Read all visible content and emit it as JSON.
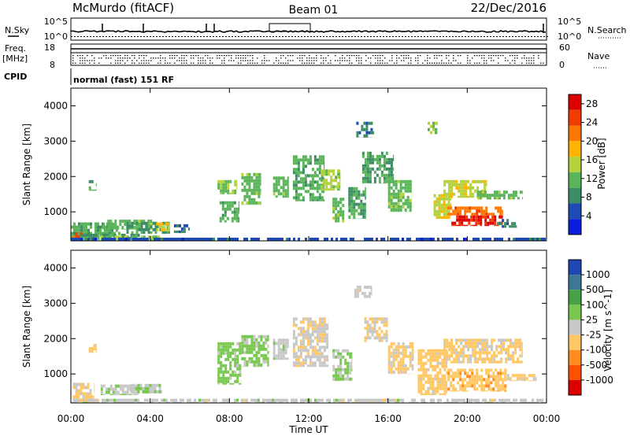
{
  "header": {
    "station": "McMurdo (fitACF)",
    "beam": "Beam 01",
    "date": "22/Dec/2016"
  },
  "top_panels": {
    "nsky_label": "N.Sky",
    "nsearch_label": "N.Search",
    "nsky_ticks": [
      "10^5",
      "10^0"
    ],
    "nsearch_ticks": [
      "10^5",
      "10^0"
    ],
    "freq_label": "Freq.",
    "freq_unit": "[MHz]",
    "freq_ticks": [
      "18",
      "8"
    ],
    "nave_label": "Nave",
    "nave_ticks": [
      "60",
      "0"
    ],
    "cpid_label": "CPID",
    "cpid_value": "normal (fast) 151 RF"
  },
  "chart_data": [
    {
      "type": "heatmap",
      "name": "power",
      "ylabel": "Slant Range [km]",
      "xlabel": "Time UT",
      "xlim": [
        "00:00",
        "24:00"
      ],
      "ylim": [
        180,
        4500
      ],
      "y_ticks": [
        "1000",
        "2000",
        "3000",
        "4000"
      ],
      "x_ticks": [
        "00:00",
        "04:00",
        "08:00",
        "12:00",
        "16:00",
        "20:00",
        "00:00"
      ],
      "colorbar": {
        "label": "Power [dB]",
        "ticks": [
          "4",
          "8",
          "12",
          "16",
          "20",
          "24",
          "28"
        ],
        "range": [
          0,
          30
        ],
        "colors": [
          "#0a1edc",
          "#1e4bb4",
          "#3c8c64",
          "#5ab45a",
          "#b4d23c",
          "#ffb400",
          "#ff7800",
          "#f03c00",
          "#dc0000"
        ]
      },
      "regions": [
        {
          "t0": 0.0,
          "t1": 2.5,
          "r0": 180,
          "r1": 700,
          "v": 11
        },
        {
          "t0": 0.1,
          "t1": 0.6,
          "r0": 180,
          "r1": 420,
          "v": 24
        },
        {
          "t0": 0.5,
          "t1": 3.5,
          "r0": 200,
          "r1": 380,
          "v": 9
        },
        {
          "t0": 1.5,
          "t1": 4.5,
          "r0": 180,
          "r1": 330,
          "v": 13
        },
        {
          "t0": 1.6,
          "t1": 4.1,
          "r0": 500,
          "r1": 780,
          "v": 12
        },
        {
          "t0": 2.8,
          "t1": 5.0,
          "r0": 380,
          "r1": 720,
          "v": 9
        },
        {
          "t0": 4.3,
          "t1": 5.0,
          "r0": 450,
          "r1": 700,
          "v": 16
        },
        {
          "t0": 5.2,
          "t1": 6.0,
          "r0": 400,
          "r1": 650,
          "v": 7
        },
        {
          "t0": 0.9,
          "t1": 1.3,
          "r0": 1600,
          "r1": 1900,
          "v": 11
        },
        {
          "t0": 7.4,
          "t1": 8.4,
          "r0": 1500,
          "r1": 1900,
          "v": 13
        },
        {
          "t0": 7.5,
          "t1": 8.5,
          "r0": 700,
          "r1": 1300,
          "v": 11
        },
        {
          "t0": 8.6,
          "t1": 9.6,
          "r0": 1200,
          "r1": 2100,
          "v": 12
        },
        {
          "t0": 10.2,
          "t1": 11.0,
          "r0": 1400,
          "r1": 2000,
          "v": 12
        },
        {
          "t0": 11.2,
          "t1": 12.8,
          "r0": 1300,
          "r1": 2600,
          "v": 11
        },
        {
          "t0": 12.6,
          "t1": 13.6,
          "r0": 1600,
          "r1": 2200,
          "v": 14
        },
        {
          "t0": 13.2,
          "t1": 13.8,
          "r0": 700,
          "r1": 1400,
          "v": 12
        },
        {
          "t0": 14.0,
          "t1": 14.9,
          "r0": 800,
          "r1": 1700,
          "v": 10
        },
        {
          "t0": 14.4,
          "t1": 15.3,
          "r0": 3100,
          "r1": 3550,
          "v": 8
        },
        {
          "t0": 14.7,
          "t1": 16.3,
          "r0": 1800,
          "r1": 2700,
          "v": 10
        },
        {
          "t0": 16.0,
          "t1": 17.2,
          "r0": 1000,
          "r1": 1900,
          "v": 12
        },
        {
          "t0": 18.0,
          "t1": 18.5,
          "r0": 3200,
          "r1": 3550,
          "v": 14
        },
        {
          "t0": 18.3,
          "t1": 19.2,
          "r0": 800,
          "r1": 1500,
          "v": 16
        },
        {
          "t0": 18.8,
          "t1": 21.0,
          "r0": 1400,
          "r1": 1900,
          "v": 16
        },
        {
          "t0": 20.5,
          "t1": 22.8,
          "r0": 1350,
          "r1": 1600,
          "v": 12
        },
        {
          "t0": 19.0,
          "t1": 21.8,
          "r0": 900,
          "r1": 1150,
          "v": 22
        },
        {
          "t0": 19.2,
          "t1": 21.8,
          "r0": 600,
          "r1": 900,
          "v": 27
        },
        {
          "t0": 21.5,
          "t1": 22.5,
          "r0": 550,
          "r1": 800,
          "v": 8
        },
        {
          "t0": 0.0,
          "t1": 24.0,
          "r0": 180,
          "r1": 270,
          "v": 5
        }
      ]
    },
    {
      "type": "heatmap",
      "name": "velocity",
      "ylabel": "Slant Range [km]",
      "xlabel": "Time UT",
      "xlim": [
        "00:00",
        "24:00"
      ],
      "ylim": [
        180,
        4500
      ],
      "y_ticks": [
        "1000",
        "2000",
        "3000",
        "4000"
      ],
      "x_ticks": [
        "00:00",
        "04:00",
        "08:00",
        "12:00",
        "16:00",
        "20:00",
        "00:00"
      ],
      "colorbar": {
        "label": "Velocity [m s^-1]",
        "ticks": [
          "1000",
          "500",
          "100",
          "25",
          "-25",
          "-100",
          "-500",
          "-1000"
        ],
        "range": [
          -1200,
          1200
        ],
        "colors": [
          "#dc0000",
          "#ff5000",
          "#ff8c1e",
          "#ffc864",
          "#c8c8c8",
          "#78c850",
          "#46a046",
          "#3c7896",
          "#1e46b4"
        ]
      },
      "regions": [
        {
          "t0": 0.1,
          "t1": 1.2,
          "r0": 200,
          "r1": 750,
          "v": -150
        },
        {
          "t0": 0.9,
          "t1": 1.3,
          "r0": 1600,
          "r1": 1850,
          "v": -150
        },
        {
          "t0": 1.5,
          "t1": 3.4,
          "r0": 400,
          "r1": 700,
          "v": 60
        },
        {
          "t0": 3.0,
          "t1": 4.6,
          "r0": 450,
          "r1": 720,
          "v": 120
        },
        {
          "t0": 7.4,
          "t1": 8.6,
          "r0": 700,
          "r1": 1900,
          "v": 250
        },
        {
          "t0": 8.6,
          "t1": 10.0,
          "r0": 1200,
          "r1": 2100,
          "v": 220
        },
        {
          "t0": 10.2,
          "t1": 11.0,
          "r0": 1400,
          "r1": 2000,
          "v": 40
        },
        {
          "t0": 11.2,
          "t1": 13.0,
          "r0": 1200,
          "r1": 2600,
          "v": -80
        },
        {
          "t0": 13.2,
          "t1": 14.2,
          "r0": 800,
          "r1": 1700,
          "v": 150
        },
        {
          "t0": 14.3,
          "t1": 15.2,
          "r0": 3150,
          "r1": 3500,
          "v": 0
        },
        {
          "t0": 14.8,
          "t1": 16.0,
          "r0": 1900,
          "r1": 2600,
          "v": -150
        },
        {
          "t0": 16.0,
          "t1": 17.3,
          "r0": 1000,
          "r1": 1900,
          "v": -200
        },
        {
          "t0": 17.5,
          "t1": 19.0,
          "r0": 400,
          "r1": 1700,
          "v": -250
        },
        {
          "t0": 18.8,
          "t1": 22.8,
          "r0": 1300,
          "r1": 2000,
          "v": -200
        },
        {
          "t0": 19.0,
          "t1": 22.0,
          "r0": 500,
          "r1": 1150,
          "v": -300
        },
        {
          "t0": 22.0,
          "t1": 23.5,
          "r0": 800,
          "r1": 1000,
          "v": -200
        },
        {
          "t0": 0.0,
          "t1": 24.0,
          "r0": 180,
          "r1": 300,
          "v": 0
        }
      ]
    }
  ]
}
